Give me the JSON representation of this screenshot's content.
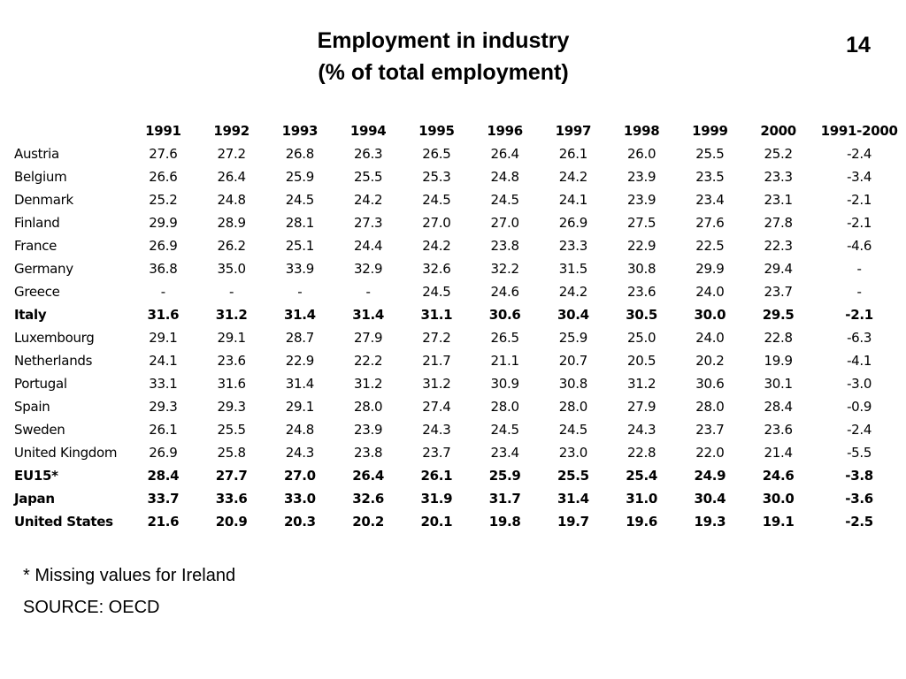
{
  "title": {
    "line1": "Employment in industry",
    "line2": "(% of total employment)"
  },
  "page_number": "14",
  "table": {
    "columns": [
      "1991",
      "1992",
      "1993",
      "1994",
      "1995",
      "1996",
      "1997",
      "1998",
      "1999",
      "2000",
      "1991-2000"
    ],
    "rows": [
      {
        "country": "Austria",
        "values": [
          "27.6",
          "27.2",
          "26.8",
          "26.3",
          "26.5",
          "26.4",
          "26.1",
          "26.0",
          "25.5",
          "25.2",
          "-2.4"
        ],
        "bold": false
      },
      {
        "country": "Belgium",
        "values": [
          "26.6",
          "26.4",
          "25.9",
          "25.5",
          "25.3",
          "24.8",
          "24.2",
          "23.9",
          "23.5",
          "23.3",
          "-3.4"
        ],
        "bold": false
      },
      {
        "country": "Denmark",
        "values": [
          "25.2",
          "24.8",
          "24.5",
          "24.2",
          "24.5",
          "24.5",
          "24.1",
          "23.9",
          "23.4",
          "23.1",
          "-2.1"
        ],
        "bold": false
      },
      {
        "country": "Finland",
        "values": [
          "29.9",
          "28.9",
          "28.1",
          "27.3",
          "27.0",
          "27.0",
          "26.9",
          "27.5",
          "27.6",
          "27.8",
          "-2.1"
        ],
        "bold": false
      },
      {
        "country": "France",
        "values": [
          "26.9",
          "26.2",
          "25.1",
          "24.4",
          "24.2",
          "23.8",
          "23.3",
          "22.9",
          "22.5",
          "22.3",
          "-4.6"
        ],
        "bold": false
      },
      {
        "country": "Germany",
        "values": [
          "36.8",
          "35.0",
          "33.9",
          "32.9",
          "32.6",
          "32.2",
          "31.5",
          "30.8",
          "29.9",
          "29.4",
          "-"
        ],
        "bold": false
      },
      {
        "country": "Greece",
        "values": [
          "-",
          "-",
          "-",
          "-",
          "24.5",
          "24.6",
          "24.2",
          "23.6",
          "24.0",
          "23.7",
          "-"
        ],
        "bold": false
      },
      {
        "country": "Italy",
        "values": [
          "31.6",
          "31.2",
          "31.4",
          "31.4",
          "31.1",
          "30.6",
          "30.4",
          "30.5",
          "30.0",
          "29.5",
          "-2.1"
        ],
        "bold": true
      },
      {
        "country": "Luxembourg",
        "values": [
          "29.1",
          "29.1",
          "28.7",
          "27.9",
          "27.2",
          "26.5",
          "25.9",
          "25.0",
          "24.0",
          "22.8",
          "-6.3"
        ],
        "bold": false
      },
      {
        "country": "Netherlands",
        "values": [
          "24.1",
          "23.6",
          "22.9",
          "22.2",
          "21.7",
          "21.1",
          "20.7",
          "20.5",
          "20.2",
          "19.9",
          "-4.1"
        ],
        "bold": false
      },
      {
        "country": "Portugal",
        "values": [
          "33.1",
          "31.6",
          "31.4",
          "31.2",
          "31.2",
          "30.9",
          "30.8",
          "31.2",
          "30.6",
          "30.1",
          "-3.0"
        ],
        "bold": false
      },
      {
        "country": "Spain",
        "values": [
          "29.3",
          "29.3",
          "29.1",
          "28.0",
          "27.4",
          "28.0",
          "28.0",
          "27.9",
          "28.0",
          "28.4",
          "-0.9"
        ],
        "bold": false
      },
      {
        "country": "Sweden",
        "values": [
          "26.1",
          "25.5",
          "24.8",
          "23.9",
          "24.3",
          "24.5",
          "24.5",
          "24.3",
          "23.7",
          "23.6",
          "-2.4"
        ],
        "bold": false
      },
      {
        "country": "United Kingdom",
        "values": [
          "26.9",
          "25.8",
          "24.3",
          "23.8",
          "23.7",
          "23.4",
          "23.0",
          "22.8",
          "22.0",
          "21.4",
          "-5.5"
        ],
        "bold": false
      },
      {
        "country": "EU15*",
        "values": [
          "28.4",
          "27.7",
          "27.0",
          "26.4",
          "26.1",
          "25.9",
          "25.5",
          "25.4",
          "24.9",
          "24.6",
          "-3.8"
        ],
        "bold": true
      },
      {
        "country": "Japan",
        "values": [
          "33.7",
          "33.6",
          "33.0",
          "32.6",
          "31.9",
          "31.7",
          "31.4",
          "31.0",
          "30.4",
          "30.0",
          "-3.6"
        ],
        "bold": true
      },
      {
        "country": "United States",
        "values": [
          "21.6",
          "20.9",
          "20.3",
          "20.2",
          "20.1",
          "19.8",
          "19.7",
          "19.6",
          "19.3",
          "19.1",
          "-2.5"
        ],
        "bold": true
      }
    ]
  },
  "footnotes": {
    "note": "* Missing values for Ireland",
    "source": "SOURCE: OECD"
  }
}
